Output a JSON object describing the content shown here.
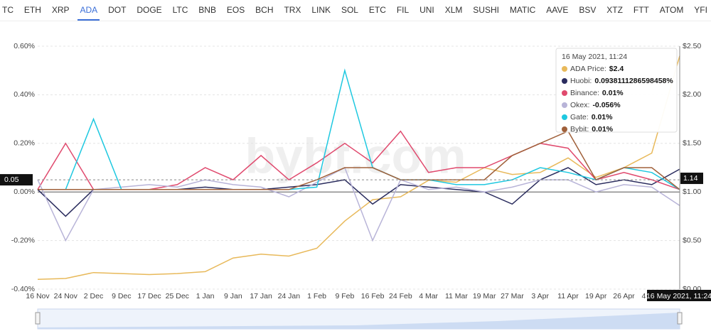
{
  "tabs": [
    "TC",
    "ETH",
    "XRP",
    "ADA",
    "DOT",
    "DOGE",
    "LTC",
    "BNB",
    "EOS",
    "BCH",
    "TRX",
    "LINK",
    "SOL",
    "ETC",
    "FIL",
    "UNI",
    "XLM",
    "SUSHI",
    "MATIC",
    "AAVE",
    "BSV",
    "XTZ",
    "FTT",
    "ATOM",
    "YFI"
  ],
  "active_tab": 3,
  "chart_data": {
    "type": "line",
    "watermark": "bybt.com",
    "categories": [
      "16 Nov",
      "24 Nov",
      "2 Dec",
      "9 Dec",
      "17 Dec",
      "25 Dec",
      "1 Jan",
      "9 Jan",
      "17 Jan",
      "24 Jan",
      "1 Feb",
      "9 Feb",
      "16 Feb",
      "24 Feb",
      "4 Mar",
      "11 Mar",
      "19 Mar",
      "27 Mar",
      "3 Apr",
      "11 Apr",
      "19 Apr",
      "26 Apr",
      "4 May",
      "16 May 2021, 11:24"
    ],
    "ylim": [
      -0.4,
      0.6
    ],
    "yticks": [
      {
        "value": -0.4,
        "label": "-0.40%"
      },
      {
        "value": -0.2,
        "label": "-0.20%"
      },
      {
        "value": 0,
        "label": "0.00%"
      },
      {
        "value": 0.2,
        "label": "0.20%"
      },
      {
        "value": 0.4,
        "label": "0.40%"
      },
      {
        "value": 0.6,
        "label": "0.60%"
      }
    ],
    "y2lim": [
      0,
      2.5
    ],
    "y2ticks": [
      {
        "value": 0,
        "label": "$0.00"
      },
      {
        "value": 0.5,
        "label": "$0.50"
      },
      {
        "value": 1,
        "label": "$1.00"
      },
      {
        "value": 1.5,
        "label": "$1.50"
      },
      {
        "value": 2,
        "label": "$2.00"
      },
      {
        "value": 2.5,
        "label": "$2.50"
      }
    ],
    "grid": true,
    "series": [
      {
        "name": "ADA Price",
        "color": "#e8b95a",
        "axis": "y2",
        "values": [
          0.1,
          0.11,
          0.17,
          0.16,
          0.15,
          0.16,
          0.18,
          0.32,
          0.36,
          0.34,
          0.42,
          0.7,
          0.92,
          0.95,
          1.12,
          1.1,
          1.25,
          1.18,
          1.2,
          1.35,
          1.15,
          1.25,
          1.4,
          2.4
        ]
      },
      {
        "name": "Huobi",
        "color": "#2a2c5e",
        "values": [
          0.01,
          -0.1,
          0.01,
          0.01,
          0.01,
          0.01,
          0.02,
          0.01,
          0.01,
          0.02,
          0.03,
          0.05,
          -0.05,
          0.03,
          0.02,
          0.01,
          0,
          -0.05,
          0.05,
          0.1,
          0.03,
          0.05,
          0.03,
          0.0938111286598458
        ]
      },
      {
        "name": "Binance",
        "color": "#e04a6e",
        "values": [
          0.01,
          0.2,
          0.01,
          0.01,
          0.01,
          0.03,
          0.1,
          0.05,
          0.15,
          0.05,
          0.12,
          0.2,
          0.12,
          0.25,
          0.08,
          0.1,
          0.1,
          0.15,
          0.2,
          0.18,
          0.05,
          0.08,
          0.05,
          0.01
        ]
      },
      {
        "name": "Okex",
        "color": "#b8b4d8",
        "values": [
          0.05,
          -0.2,
          0.01,
          0.02,
          0.03,
          0.02,
          0.05,
          0.03,
          0.02,
          -0.02,
          0.04,
          0.1,
          -0.2,
          0.05,
          0.01,
          0.02,
          0,
          0.02,
          0.05,
          0.05,
          0,
          0.03,
          0.02,
          -0.056
        ]
      },
      {
        "name": "Gate",
        "color": "#1ec8e0",
        "values": [
          0.01,
          0.01,
          0.3,
          0.01,
          0.01,
          0.01,
          0.01,
          0.01,
          0.01,
          0.01,
          0.02,
          0.5,
          0.1,
          0.05,
          0.05,
          0.03,
          0.03,
          0.05,
          0.1,
          0.08,
          0.05,
          0.1,
          0.08,
          0.01
        ]
      },
      {
        "name": "Bybit",
        "color": "#a0603a",
        "values": [
          0.01,
          0.01,
          0.01,
          0.01,
          0.01,
          0.01,
          0.01,
          0.01,
          0.01,
          0.01,
          0.05,
          0.1,
          0.1,
          0.05,
          0.05,
          0.05,
          0.05,
          0.15,
          0.2,
          0.25,
          0.05,
          0.1,
          0.1,
          0.01
        ]
      }
    ],
    "crosshair": {
      "y": 0.05,
      "y2": 1.14
    },
    "tooltip": {
      "title": "16 May 2021, 11:24",
      "items": [
        {
          "label": "ADA Price:",
          "value": "$2.4"
        },
        {
          "label": "Huobi:",
          "value": "0.0938111286598458%"
        },
        {
          "label": "Binance:",
          "value": "0.01%"
        },
        {
          "label": "Okex:",
          "value": "-0.056%"
        },
        {
          "label": "Gate:",
          "value": "0.01%"
        },
        {
          "label": "Bybit:",
          "value": "0.01%"
        }
      ]
    }
  }
}
